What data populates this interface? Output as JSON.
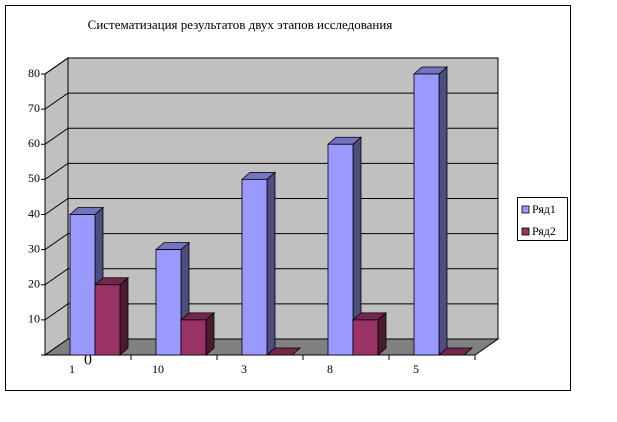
{
  "chart_data": {
    "type": "bar3d",
    "title": "Систематизация результатов двух этапов исследования",
    "categories": [
      "1",
      "10",
      "3",
      "8",
      "5"
    ],
    "series": [
      {
        "name": "Ряд1",
        "color": "#9999ff",
        "values": [
          40,
          30,
          50,
          60,
          80
        ]
      },
      {
        "name": "Ряд2",
        "color": "#993366",
        "values": [
          20,
          10,
          0,
          10,
          0
        ]
      }
    ],
    "ylim": [
      0,
      80
    ],
    "yticks": [
      0,
      10,
      20,
      30,
      40,
      50,
      60,
      70,
      80
    ],
    "grid": true,
    "legend": "right"
  }
}
